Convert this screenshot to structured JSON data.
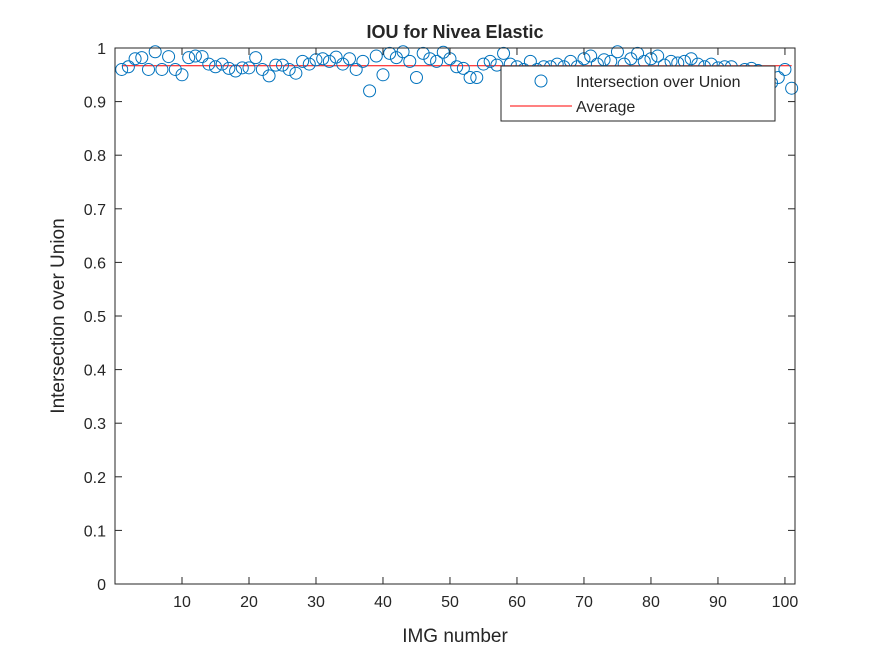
{
  "chart_data": {
    "type": "scatter",
    "title": "IOU for Nivea Elastic",
    "xlabel": "IMG number",
    "ylabel": "Intersection over Union",
    "xlim": [
      0,
      101.5
    ],
    "ylim": [
      0,
      1
    ],
    "xticks": [
      10,
      20,
      30,
      40,
      50,
      60,
      70,
      80,
      90,
      100
    ],
    "yticks": [
      0,
      0.1,
      0.2,
      0.3,
      0.4,
      0.5,
      0.6,
      0.7,
      0.8,
      0.9,
      1
    ],
    "ytick_labels": [
      "0",
      "0.1",
      "0.2",
      "0.3",
      "0.4",
      "0.5",
      "0.6",
      "0.7",
      "0.8",
      "0.9",
      "1"
    ],
    "grid": false,
    "legend_position": "top-right",
    "series": [
      {
        "name": "Intersection over Union",
        "marker": "circle-open",
        "color": "#0072BD",
        "x": [
          1,
          2,
          3,
          4,
          5,
          6,
          7,
          8,
          9,
          10,
          11,
          12,
          13,
          14,
          15,
          16,
          17,
          18,
          19,
          20,
          21,
          22,
          23,
          24,
          25,
          26,
          27,
          28,
          29,
          30,
          31,
          32,
          33,
          34,
          35,
          36,
          37,
          38,
          39,
          40,
          41,
          42,
          43,
          44,
          45,
          46,
          47,
          48,
          49,
          50,
          51,
          52,
          53,
          54,
          55,
          56,
          57,
          58,
          59,
          60,
          61,
          62,
          63,
          64,
          65,
          66,
          67,
          68,
          69,
          70,
          71,
          72,
          73,
          74,
          75,
          76,
          77,
          78,
          79,
          80,
          81,
          82,
          83,
          84,
          85,
          86,
          87,
          88,
          89,
          90,
          91,
          92,
          93,
          94,
          95,
          96,
          97,
          98,
          99,
          100,
          101
        ],
        "y": [
          0.96,
          0.965,
          0.98,
          0.982,
          0.96,
          0.993,
          0.96,
          0.984,
          0.96,
          0.95,
          0.982,
          0.985,
          0.984,
          0.97,
          0.965,
          0.97,
          0.962,
          0.957,
          0.963,
          0.963,
          0.982,
          0.96,
          0.948,
          0.968,
          0.968,
          0.96,
          0.953,
          0.975,
          0.97,
          0.978,
          0.98,
          0.975,
          0.983,
          0.97,
          0.98,
          0.96,
          0.975,
          0.92,
          0.985,
          0.95,
          0.99,
          0.982,
          0.993,
          0.975,
          0.945,
          0.99,
          0.98,
          0.975,
          0.992,
          0.98,
          0.965,
          0.962,
          0.945,
          0.945,
          0.97,
          0.975,
          0.968,
          0.99,
          0.97,
          0.965,
          0.96,
          0.975,
          0.96,
          0.965,
          0.965,
          0.97,
          0.965,
          0.975,
          0.965,
          0.98,
          0.985,
          0.97,
          0.978,
          0.975,
          0.993,
          0.97,
          0.98,
          0.99,
          0.975,
          0.98,
          0.985,
          0.968,
          0.975,
          0.972,
          0.975,
          0.98,
          0.97,
          0.965,
          0.97,
          0.963,
          0.965,
          0.965,
          0.955,
          0.96,
          0.962,
          0.958,
          0.955,
          0.935,
          0.945,
          0.96,
          0.925
        ]
      },
      {
        "name": "Average",
        "style": "line",
        "color": "#FF0000",
        "x": [
          1,
          101
        ],
        "y": [
          0.967,
          0.967
        ]
      }
    ]
  }
}
